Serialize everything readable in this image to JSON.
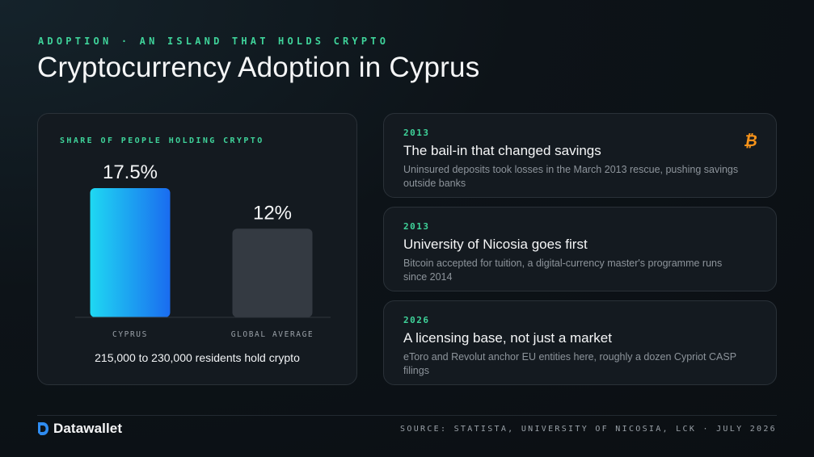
{
  "header": {
    "eyebrow": "ADOPTION · AN ISLAND THAT HOLDS CRYPTO",
    "title": "Cryptocurrency Adoption in Cyprus"
  },
  "chart_data": {
    "type": "bar",
    "title": "SHARE OF PEOPLE HOLDING CRYPTO",
    "categories": [
      "CYPRUS",
      "GLOBAL AVERAGE"
    ],
    "values": [
      17.5,
      12
    ],
    "value_labels": [
      "17.5%",
      "12%"
    ],
    "unit": "%",
    "ylim": [
      0,
      17.5
    ],
    "grid": false,
    "colors": [
      "#1fd0f0",
      "#343a42"
    ],
    "caption": "215,000 to 230,000 residents hold crypto"
  },
  "events": [
    {
      "year": "2013",
      "title": "The bail-in that changed savings",
      "description": "Uninsured deposits took losses in the March 2013 rescue, pushing savings outside banks",
      "icon": "bitcoin-icon"
    },
    {
      "year": "2013",
      "title": "University of Nicosia goes first",
      "description": "Bitcoin accepted for tuition, a digital-currency master's programme runs since 2014"
    },
    {
      "year": "2026",
      "title": "A licensing base, not just a market",
      "description": "eToro and Revolut anchor EU entities here, roughly a dozen Cypriot CASP filings"
    }
  ],
  "footer": {
    "brand": "Datawallet",
    "source": "SOURCE: STATISTA, UNIVERSITY OF NICOSIA, LCK · JULY 2026"
  },
  "colors": {
    "accent": "#3fd39a",
    "bitcoin": "#f7931a"
  }
}
